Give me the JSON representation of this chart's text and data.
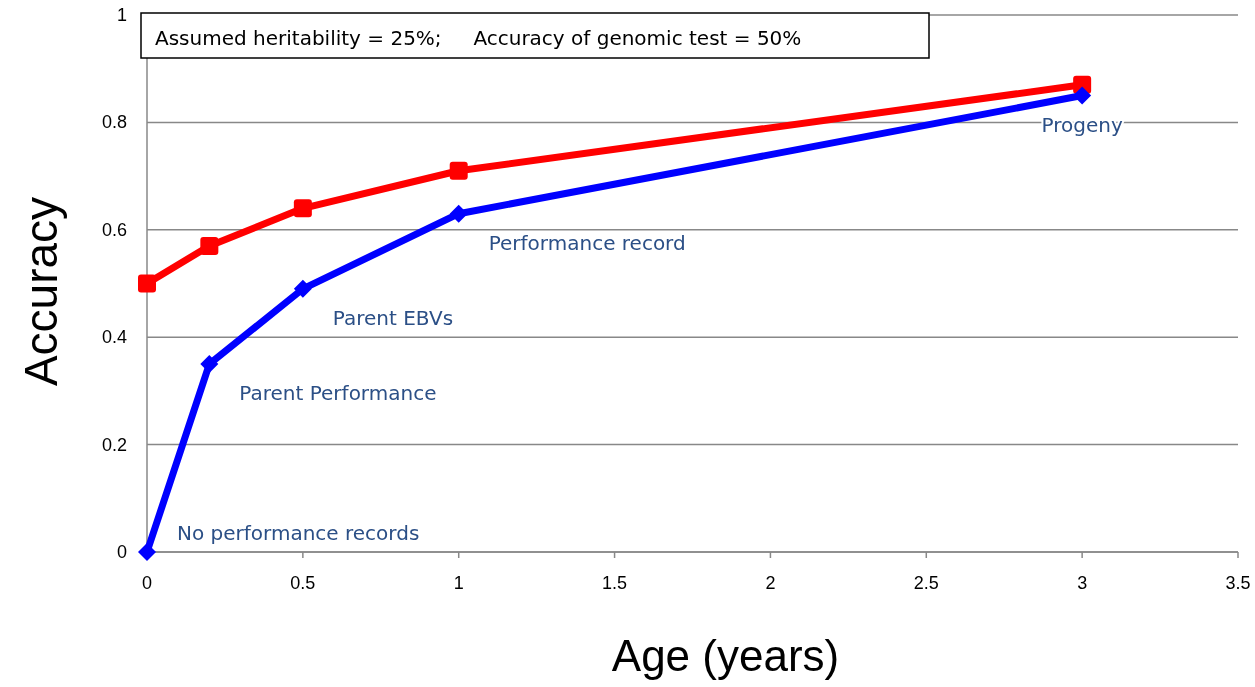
{
  "chart_data": {
    "type": "line",
    "xlabel": "Age (years)",
    "ylabel": "Accuracy",
    "x": [
      0,
      0.2,
      0.5,
      1,
      3
    ],
    "series": [
      {
        "color": "#ff0000",
        "values": [
          0.5,
          0.57,
          0.64,
          0.71,
          0.87
        ],
        "marker": "square"
      },
      {
        "color": "#0000ff",
        "values": [
          0,
          0.35,
          0.49,
          0.63,
          0.85
        ],
        "marker": "diamond"
      }
    ],
    "xlim": [
      0,
      3.5
    ],
    "xticks": [
      0,
      0.5,
      1,
      1.5,
      2,
      2.5,
      3,
      3.5
    ],
    "ylim": [
      0,
      1
    ],
    "yticks": [
      0,
      0.2,
      0.4,
      0.6,
      0.8,
      1
    ],
    "grid": "y",
    "annotations": [
      "Assumed heritability = 25%;     Accuracy of genomic test = 50%",
      {
        "text": "No performance records",
        "x": 0,
        "y": 0
      },
      {
        "text": "Parent Performance",
        "x": 0.2,
        "y": 0.35
      },
      {
        "text": "Parent EBVs",
        "x": 0.5,
        "y": 0.49
      },
      {
        "text": "Performance record",
        "x": 1,
        "y": 0.63
      },
      {
        "text": "Progeny",
        "x": 3,
        "y": 0.85
      }
    ]
  }
}
